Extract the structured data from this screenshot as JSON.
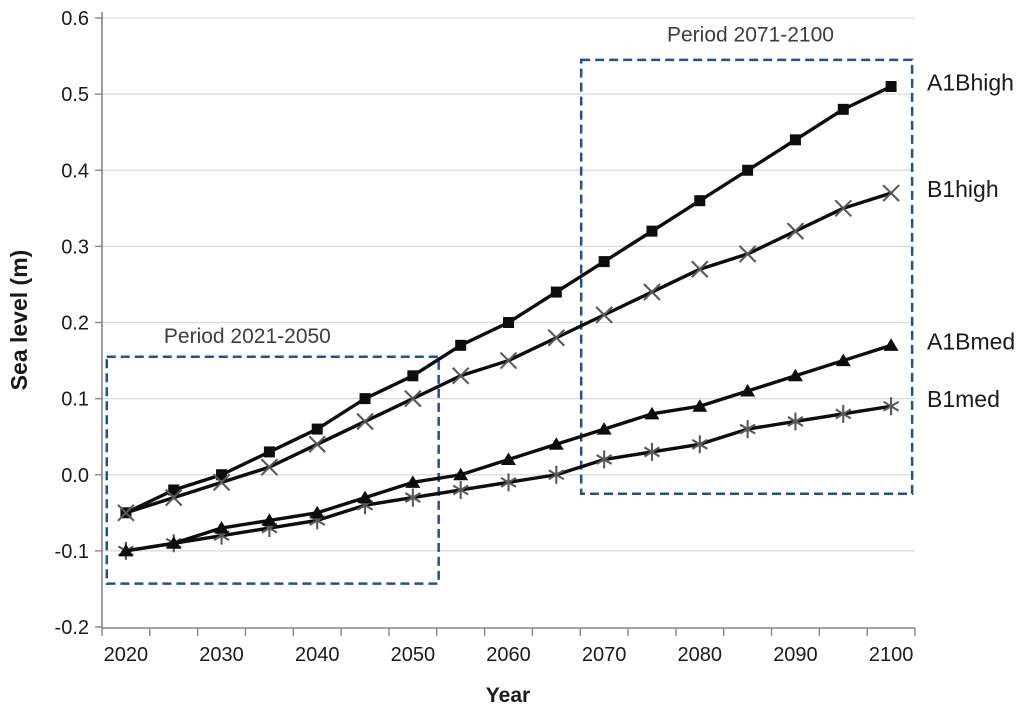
{
  "chart_data": {
    "type": "line",
    "title": "",
    "xlabel": "Year",
    "ylabel": "Sea level (m)",
    "x_years": [
      2020,
      2025,
      2030,
      2035,
      2040,
      2045,
      2050,
      2055,
      2060,
      2065,
      2070,
      2075,
      2080,
      2085,
      2090,
      2095,
      2100
    ],
    "x_tick_labels": [
      "2020",
      "2030",
      "2040",
      "2050",
      "2060",
      "2070",
      "2080",
      "2090",
      "2100"
    ],
    "y_tick_labels": [
      "-0.2",
      "-0.1",
      "0.0",
      "0.1",
      "0.2",
      "0.3",
      "0.4",
      "0.5",
      "0.6"
    ],
    "ylim": [
      -0.2,
      0.6
    ],
    "grid": "horizontal",
    "legend_position": "right of plot, aligned with line ends",
    "series": [
      {
        "name": "A1Bhigh",
        "marker": "filled-square",
        "line_color": "#0d0d0d",
        "marker_color": "#0d0d0d",
        "values": [
          -0.05,
          -0.02,
          0.0,
          0.03,
          0.06,
          0.1,
          0.13,
          0.17,
          0.2,
          0.24,
          0.28,
          0.32,
          0.36,
          0.4,
          0.44,
          0.48,
          0.51
        ]
      },
      {
        "name": "B1high",
        "marker": "x-cross",
        "line_color": "#0d0d0d",
        "marker_color": "#595959",
        "values": [
          -0.05,
          -0.03,
          -0.01,
          0.01,
          0.04,
          0.07,
          0.1,
          0.13,
          0.15,
          0.18,
          0.21,
          0.24,
          0.27,
          0.29,
          0.32,
          0.35,
          0.37
        ]
      },
      {
        "name": "A1Bmed",
        "marker": "filled-triangle",
        "line_color": "#0d0d0d",
        "marker_color": "#0d0d0d",
        "values": [
          -0.1,
          -0.09,
          -0.07,
          -0.06,
          -0.05,
          -0.03,
          -0.01,
          0.0,
          0.02,
          0.04,
          0.06,
          0.08,
          0.09,
          0.11,
          0.13,
          0.15,
          0.17
        ]
      },
      {
        "name": "B1med",
        "marker": "asterisk",
        "line_color": "#0d0d0d",
        "marker_color": "#595959",
        "values": [
          -0.1,
          -0.09,
          -0.08,
          -0.07,
          -0.06,
          -0.04,
          -0.03,
          -0.02,
          -0.01,
          0.0,
          0.02,
          0.03,
          0.04,
          0.06,
          0.07,
          0.08,
          0.09
        ]
      }
    ],
    "annotations": [
      {
        "label": "Period 2021-2050",
        "box": {
          "year_from": 2018.0,
          "year_to": 2052.7,
          "value_from": -0.143,
          "value_to": 0.155
        },
        "label_anchor": {
          "year": 2032.7,
          "value": 0.182
        }
      },
      {
        "label": "Period 2071-2100",
        "box": {
          "year_from": 2067.6,
          "year_to": 2102.2,
          "value_from": -0.025,
          "value_to": 0.545
        },
        "label_anchor": {
          "year": 2085.3,
          "value": 0.578
        }
      }
    ]
  },
  "colors": {
    "background": "#ffffff",
    "gridline": "#d9d9d9",
    "axis": "#868686",
    "tick_text": "#1a1a1a",
    "series_line": "#0d0d0d",
    "cross_marker": "#595959",
    "annotation_box": "#24508c"
  }
}
